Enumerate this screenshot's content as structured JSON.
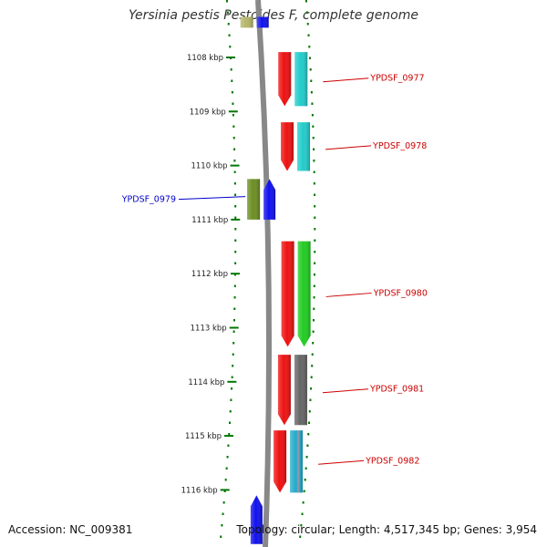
{
  "title": "Yersinia pestis Pestoides F, complete genome",
  "accession": "Accession: NC_009381",
  "topology": "Topology: circular; Length: 4,517,345 bp; Genes: 3,954",
  "axis": {
    "unit": "kbp",
    "ticks": [
      1108,
      1109,
      1110,
      1111,
      1112,
      1113,
      1114,
      1115,
      1116
    ]
  },
  "colors": {
    "red_label": "#cc0000",
    "blue_label": "#0000cc",
    "tick": "#007700",
    "backbone": "#888888"
  },
  "genes": [
    {
      "id": "top-olive",
      "start_kbp": 1107.25,
      "end_kbp": 1107.45,
      "track": "left-outer",
      "strand": "none",
      "color": "#b5b56a",
      "label": ""
    },
    {
      "id": "top-blue",
      "start_kbp": 1107.25,
      "end_kbp": 1107.45,
      "track": "left-inner",
      "strand": "none",
      "color": "#1010ee",
      "label": ""
    },
    {
      "id": "ydpsf-0977-red",
      "start_kbp": 1107.9,
      "end_kbp": 1108.9,
      "track": "right-inner",
      "strand": "reverse",
      "color": "#ee1111",
      "label": ""
    },
    {
      "id": "ydpsf-0977-cyan",
      "start_kbp": 1107.9,
      "end_kbp": 1108.9,
      "track": "right-outer",
      "strand": "none",
      "color": "#22cccc",
      "label": "YPDSF_0977",
      "label_color": "#cc0000"
    },
    {
      "id": "ydpsf-0978-red",
      "start_kbp": 1109.2,
      "end_kbp": 1110.1,
      "track": "right-inner",
      "strand": "reverse",
      "color": "#ee1111",
      "label": ""
    },
    {
      "id": "ydpsf-0978-cyan",
      "start_kbp": 1109.2,
      "end_kbp": 1110.1,
      "track": "right-outer",
      "strand": "none",
      "color": "#22cccc",
      "label": "YPDSF_0978",
      "label_color": "#cc0000"
    },
    {
      "id": "ydpsf-0979-olive",
      "start_kbp": 1110.25,
      "end_kbp": 1111.0,
      "track": "left-outer",
      "strand": "none",
      "color": "#6b8e23",
      "label": "YPDSF_0979",
      "label_color": "#0000cc"
    },
    {
      "id": "ydpsf-0979-blue",
      "start_kbp": 1110.25,
      "end_kbp": 1111.0,
      "track": "left-inner",
      "strand": "forward",
      "color": "#1010ee",
      "label": ""
    },
    {
      "id": "ydpsf-0980-red",
      "start_kbp": 1111.4,
      "end_kbp": 1113.35,
      "track": "right-inner",
      "strand": "reverse",
      "color": "#ee1111",
      "label": ""
    },
    {
      "id": "ydpsf-0980-green",
      "start_kbp": 1111.4,
      "end_kbp": 1113.35,
      "track": "right-outer",
      "strand": "reverse",
      "color": "#22cc22",
      "label": "YPDSF_0980",
      "label_color": "#cc0000"
    },
    {
      "id": "ydpsf-0981-red",
      "start_kbp": 1113.5,
      "end_kbp": 1114.8,
      "track": "right-inner",
      "strand": "reverse",
      "color": "#ee1111",
      "label": ""
    },
    {
      "id": "ydpsf-0981-gray",
      "start_kbp": 1113.5,
      "end_kbp": 1114.8,
      "track": "right-outer",
      "strand": "none",
      "color": "#666666",
      "label": "YPDSF_0981",
      "label_color": "#cc0000"
    },
    {
      "id": "ydpsf-0982-red",
      "start_kbp": 1114.9,
      "end_kbp": 1116.05,
      "track": "right-inner",
      "strand": "reverse",
      "color": "#ee1111",
      "label": ""
    },
    {
      "id": "ydpsf-0982-multi",
      "start_kbp": 1114.9,
      "end_kbp": 1116.05,
      "track": "right-outer",
      "strand": "none",
      "color": "#22aacc",
      "label": "YPDSF_0982",
      "label_color": "#cc0000"
    },
    {
      "id": "bottom-blue",
      "start_kbp": 1116.1,
      "end_kbp": 1117.0,
      "track": "left-inner",
      "strand": "forward",
      "color": "#1010ee",
      "label": ""
    }
  ]
}
